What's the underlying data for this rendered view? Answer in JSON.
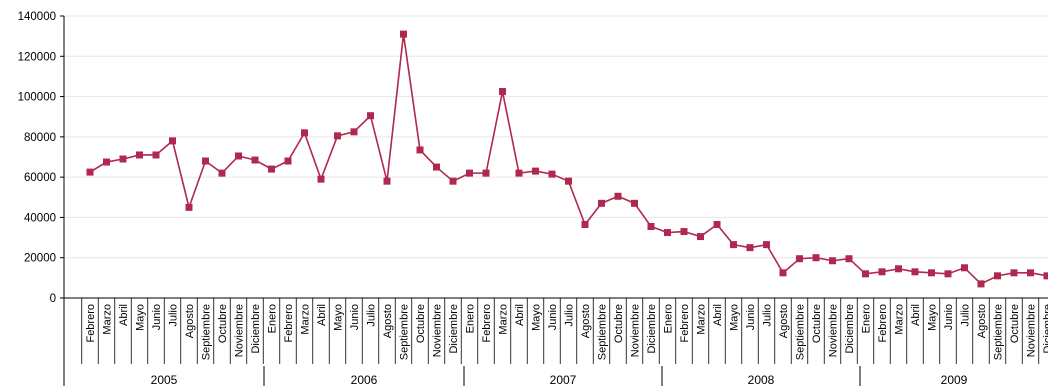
{
  "chart_data": {
    "type": "line",
    "title": "",
    "xlabel": "",
    "ylabel": "",
    "ylim": [
      0,
      140000
    ],
    "yticks": [
      "0",
      "20000",
      "40000",
      "60000",
      "80000",
      "100000",
      "120000",
      "140000"
    ],
    "grid": true,
    "legend": "none",
    "colors": {
      "series": "#b0284e",
      "grid": "#e6e6e6",
      "axis": "#000000"
    },
    "groups": [
      {
        "label": "2005",
        "months": [
          "Febrero",
          "Marzo",
          "Abril",
          "Mayo",
          "Junio",
          "Julio",
          "Agosto",
          "Septiembre",
          "Octubre",
          "Noviembre",
          "Diciembre"
        ]
      },
      {
        "label": "2006",
        "months": [
          "Enero",
          "Febrero",
          "Marzo",
          "Abril",
          "Mayo",
          "Junio",
          "Julio",
          "Agosto",
          "Septiembre",
          "Octubre",
          "Noviembre",
          "Diciembre"
        ]
      },
      {
        "label": "2007",
        "months": [
          "Enero",
          "Febrero",
          "Marzo",
          "Abril",
          "Mayo",
          "Junio",
          "Julio",
          "Agosto",
          "Septiembre",
          "Octubre",
          "Noviembre",
          "Diciembre"
        ]
      },
      {
        "label": "2008",
        "months": [
          "Enero",
          "Febrero",
          "Marzo",
          "Abril",
          "Mayo",
          "Junio",
          "Julio",
          "Agosto",
          "Septiembre",
          "Octubre",
          "Noviembre",
          "Diciembre"
        ]
      },
      {
        "label": "2009",
        "months": [
          "Enero",
          "Febrero",
          "Marzo",
          "Abril",
          "Mayo",
          "Junio",
          "Julio",
          "Agosto",
          "Septiembre",
          "Octubre",
          "Noviembre",
          "Diciembre"
        ]
      }
    ],
    "series": [
      {
        "values": [
          62500,
          67500,
          69000,
          71000,
          71000,
          78000,
          45000,
          68000,
          62000,
          70500,
          68500,
          64000,
          68000,
          82000,
          59000,
          80500,
          82500,
          90500,
          58000,
          131000,
          73500,
          65000,
          58000,
          62000,
          62000,
          102500,
          62000,
          63000,
          61500,
          58000,
          36500,
          47000,
          50500,
          47000,
          35500,
          32500,
          33000,
          30500,
          36500,
          26500,
          25000,
          26500,
          12500,
          19500,
          20000,
          18500,
          19500,
          12000,
          13000,
          14500,
          13000,
          12500,
          12000,
          15000,
          7000,
          11000,
          12500,
          12500,
          11000
        ]
      }
    ]
  }
}
